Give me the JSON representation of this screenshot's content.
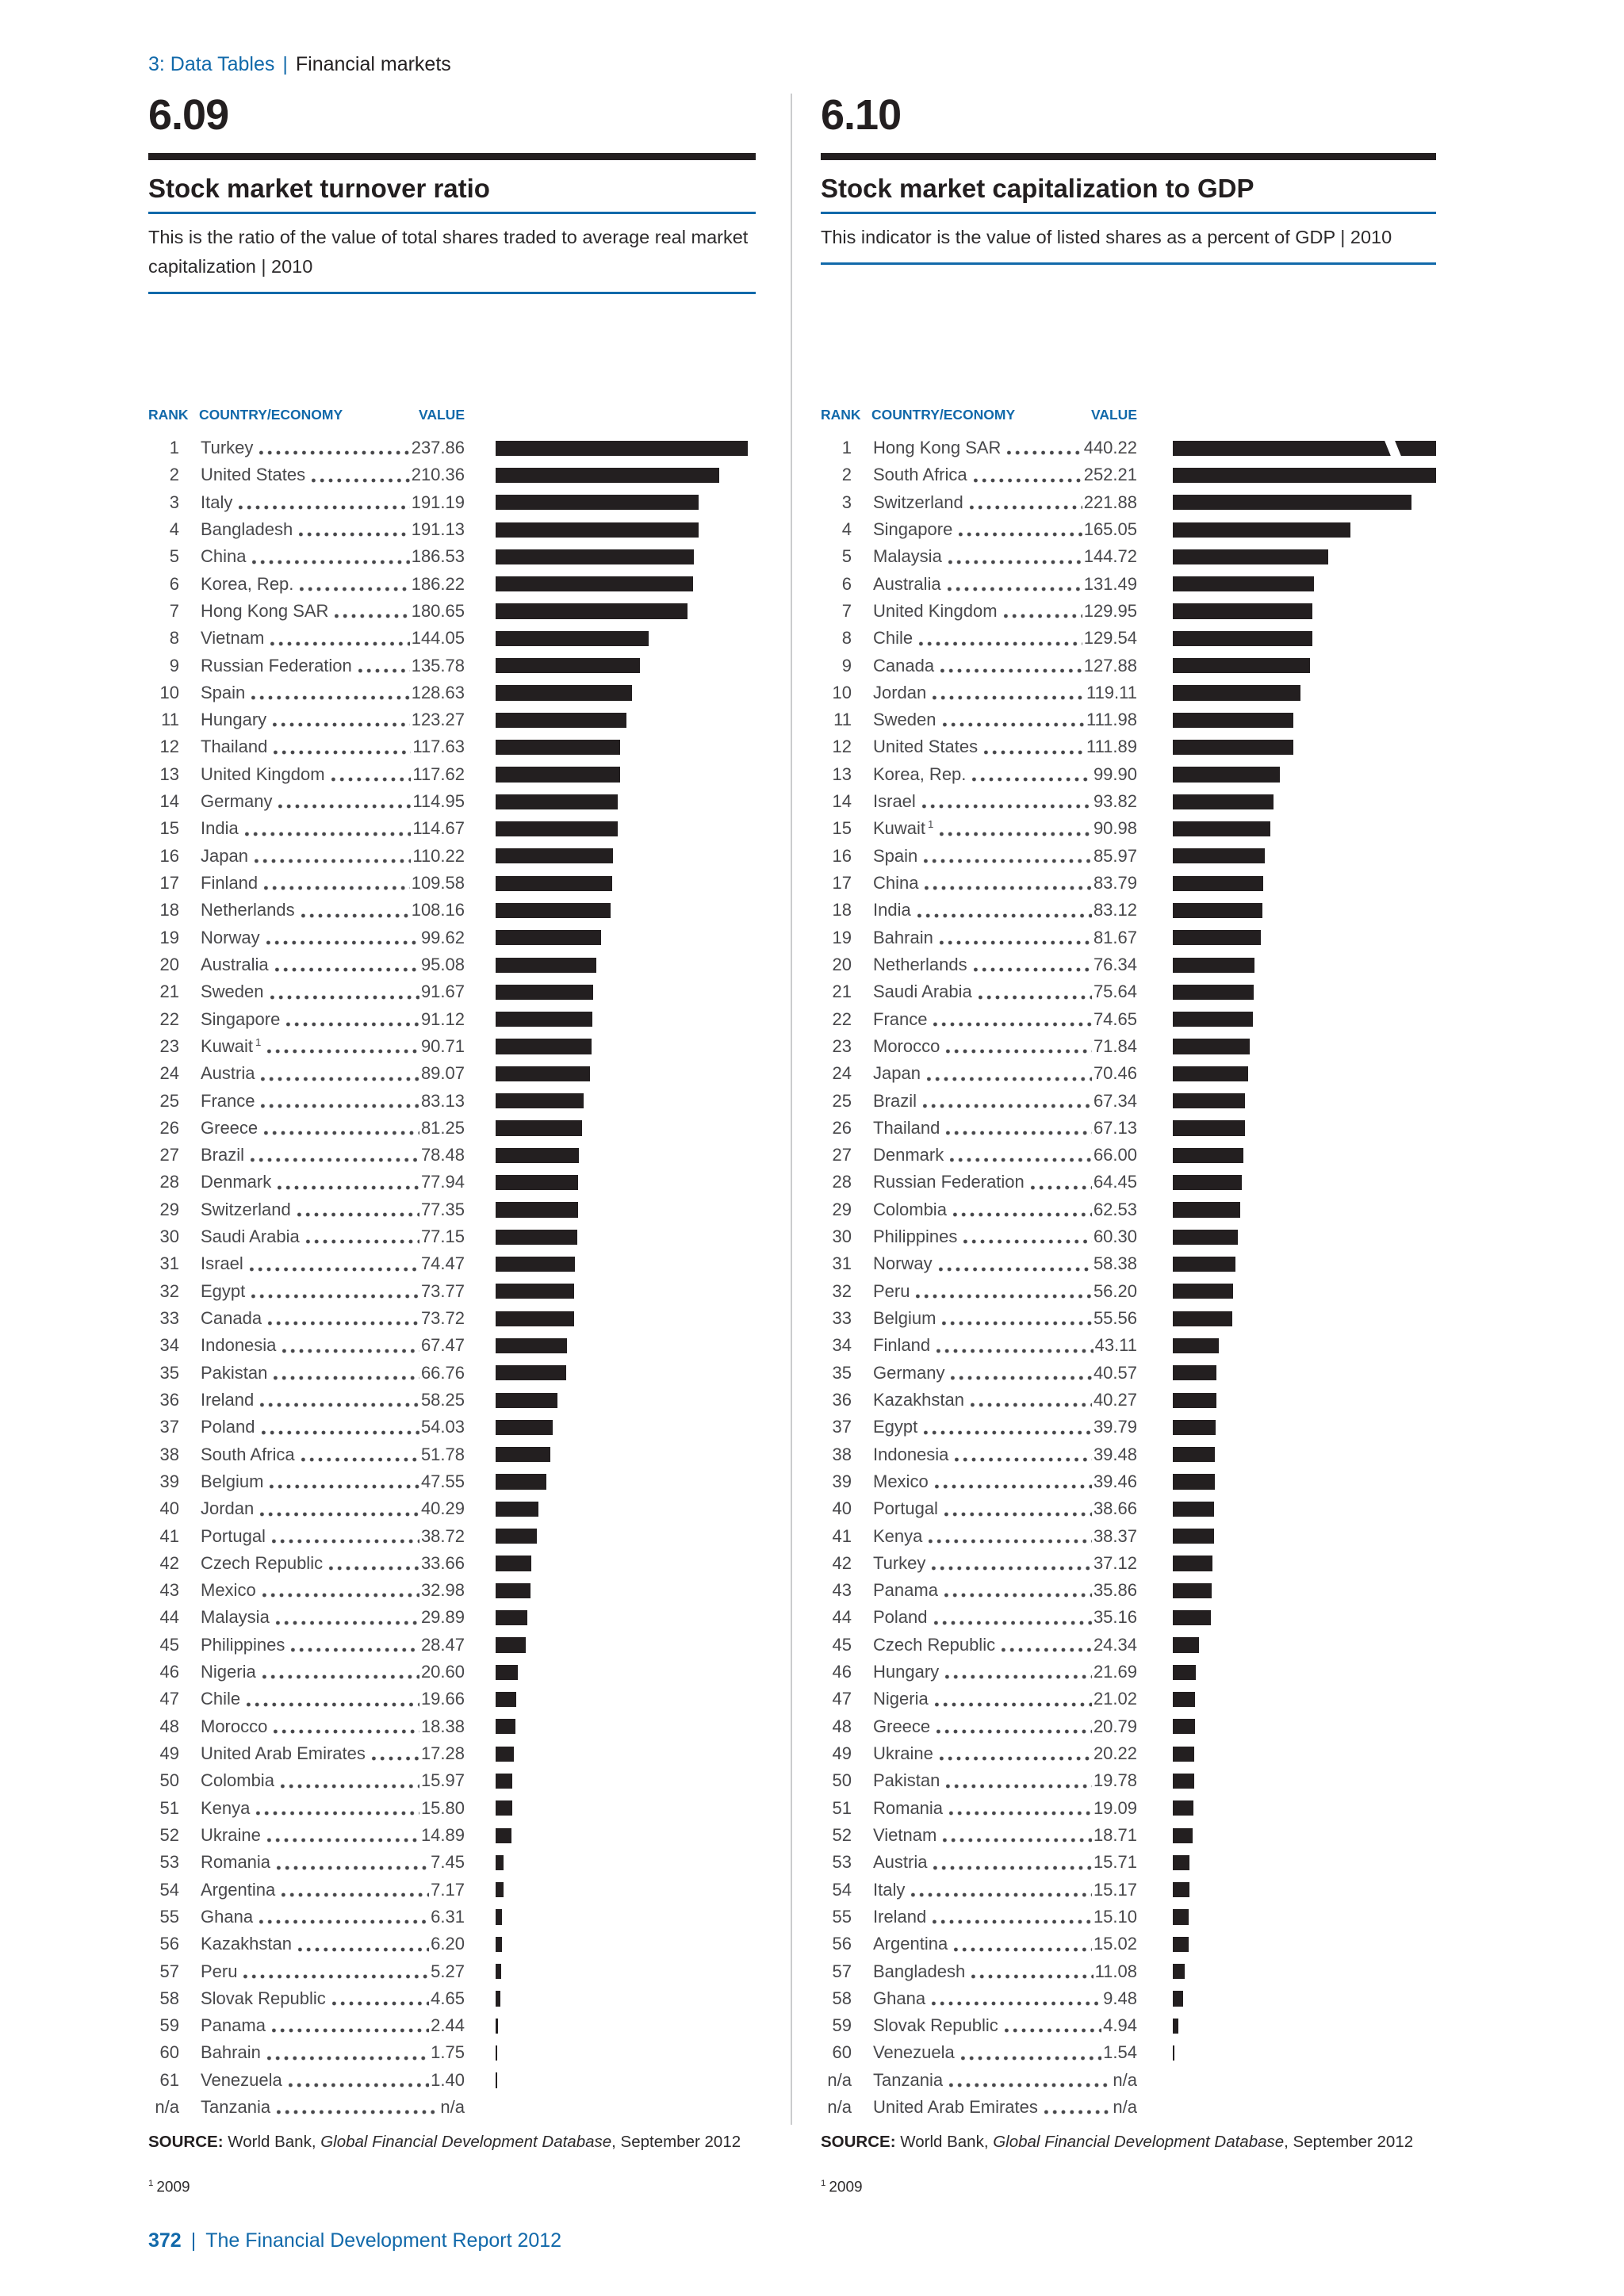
{
  "page": {
    "breadcrumb": {
      "section": "3: Data Tables",
      "separator": "|",
      "subsection": "Financial markets"
    },
    "footer": {
      "page_number": "372",
      "separator": "|",
      "title": "The Financial Development Report 2012"
    }
  },
  "colors": {
    "accent_blue": "#1169aa",
    "bar_black": "#231f20",
    "panel_gray": "#e4e5e6",
    "row_text": "#48484b",
    "divider_gray": "#cbccce"
  },
  "tables": [
    {
      "number": "6.09",
      "title": "Stock market turnover ratio",
      "description": "This is the ratio of the value of total shares traded to average real market capitalization | 2010",
      "columns": {
        "rank": "RANK",
        "country": "COUNTRY/ECONOMY",
        "value": "VALUE"
      },
      "bar_axis_max": 245,
      "source": {
        "label": "SOURCE:",
        "pre": " World Bank, ",
        "italic": "Global Financial Development Database",
        "post": ", September 2012"
      },
      "footnote": {
        "sup": "1",
        "text": "2009"
      },
      "rows": [
        {
          "rank": "1",
          "country": "Turkey",
          "value": "237.86"
        },
        {
          "rank": "2",
          "country": "United States",
          "value": "210.36"
        },
        {
          "rank": "3",
          "country": "Italy",
          "value": "191.19"
        },
        {
          "rank": "4",
          "country": "Bangladesh",
          "value": "191.13"
        },
        {
          "rank": "5",
          "country": "China",
          "value": "186.53"
        },
        {
          "rank": "6",
          "country": "Korea, Rep.",
          "value": "186.22"
        },
        {
          "rank": "7",
          "country": "Hong Kong SAR",
          "value": "180.65"
        },
        {
          "rank": "8",
          "country": "Vietnam",
          "value": "144.05"
        },
        {
          "rank": "9",
          "country": "Russian Federation",
          "value": "135.78"
        },
        {
          "rank": "10",
          "country": "Spain",
          "value": "128.63"
        },
        {
          "rank": "11",
          "country": "Hungary",
          "value": "123.27"
        },
        {
          "rank": "12",
          "country": "Thailand",
          "value": "117.63"
        },
        {
          "rank": "13",
          "country": "United Kingdom",
          "value": "117.62"
        },
        {
          "rank": "14",
          "country": "Germany",
          "value": "114.95"
        },
        {
          "rank": "15",
          "country": "India",
          "value": "114.67"
        },
        {
          "rank": "16",
          "country": "Japan",
          "value": "110.22"
        },
        {
          "rank": "17",
          "country": "Finland",
          "value": "109.58"
        },
        {
          "rank": "18",
          "country": "Netherlands",
          "value": "108.16"
        },
        {
          "rank": "19",
          "country": "Norway",
          "value": "99.62"
        },
        {
          "rank": "20",
          "country": "Australia",
          "value": "95.08"
        },
        {
          "rank": "21",
          "country": "Sweden",
          "value": "91.67"
        },
        {
          "rank": "22",
          "country": "Singapore",
          "value": "91.12"
        },
        {
          "rank": "23",
          "country": "Kuwait",
          "sup": "1",
          "value": "90.71"
        },
        {
          "rank": "24",
          "country": "Austria",
          "value": "89.07"
        },
        {
          "rank": "25",
          "country": "France",
          "value": "83.13"
        },
        {
          "rank": "26",
          "country": "Greece",
          "value": "81.25"
        },
        {
          "rank": "27",
          "country": "Brazil",
          "value": "78.48"
        },
        {
          "rank": "28",
          "country": "Denmark",
          "value": "77.94"
        },
        {
          "rank": "29",
          "country": "Switzerland",
          "value": "77.35"
        },
        {
          "rank": "30",
          "country": "Saudi Arabia",
          "value": "77.15"
        },
        {
          "rank": "31",
          "country": "Israel",
          "value": "74.47"
        },
        {
          "rank": "32",
          "country": "Egypt",
          "value": "73.77"
        },
        {
          "rank": "33",
          "country": "Canada",
          "value": "73.72"
        },
        {
          "rank": "34",
          "country": "Indonesia",
          "value": "67.47"
        },
        {
          "rank": "35",
          "country": "Pakistan",
          "value": "66.76"
        },
        {
          "rank": "36",
          "country": "Ireland",
          "value": "58.25"
        },
        {
          "rank": "37",
          "country": "Poland",
          "value": "54.03"
        },
        {
          "rank": "38",
          "country": "South Africa",
          "value": "51.78"
        },
        {
          "rank": "39",
          "country": "Belgium",
          "value": "47.55"
        },
        {
          "rank": "40",
          "country": "Jordan",
          "value": "40.29"
        },
        {
          "rank": "41",
          "country": "Portugal",
          "value": "38.72"
        },
        {
          "rank": "42",
          "country": "Czech Republic",
          "value": "33.66"
        },
        {
          "rank": "43",
          "country": "Mexico",
          "value": "32.98"
        },
        {
          "rank": "44",
          "country": "Malaysia",
          "value": "29.89"
        },
        {
          "rank": "45",
          "country": "Philippines",
          "value": "28.47"
        },
        {
          "rank": "46",
          "country": "Nigeria",
          "value": "20.60"
        },
        {
          "rank": "47",
          "country": "Chile",
          "value": "19.66"
        },
        {
          "rank": "48",
          "country": "Morocco",
          "value": "18.38"
        },
        {
          "rank": "49",
          "country": "United Arab Emirates",
          "value": "17.28"
        },
        {
          "rank": "50",
          "country": "Colombia",
          "value": "15.97"
        },
        {
          "rank": "51",
          "country": "Kenya",
          "value": "15.80"
        },
        {
          "rank": "52",
          "country": "Ukraine",
          "value": "14.89"
        },
        {
          "rank": "53",
          "country": "Romania",
          "value": "7.45"
        },
        {
          "rank": "54",
          "country": "Argentina",
          "value": "7.17"
        },
        {
          "rank": "55",
          "country": "Ghana",
          "value": "6.31"
        },
        {
          "rank": "56",
          "country": "Kazakhstan",
          "value": "6.20"
        },
        {
          "rank": "57",
          "country": "Peru",
          "value": "5.27"
        },
        {
          "rank": "58",
          "country": "Slovak Republic",
          "value": "4.65"
        },
        {
          "rank": "59",
          "country": "Panama",
          "value": "2.44"
        },
        {
          "rank": "60",
          "country": "Bahrain",
          "value": "1.75"
        },
        {
          "rank": "61",
          "country": "Venezuela",
          "value": "1.40"
        },
        {
          "rank": "n/a",
          "country": "Tanzania",
          "value": "n/a"
        }
      ]
    },
    {
      "number": "6.10",
      "title": "Stock market capitalization to GDP",
      "description": "This indicator is the value of listed shares as a percent of GDP | 2010",
      "columns": {
        "rank": "RANK",
        "country": "COUNTRY/ECONOMY",
        "value": "VALUE"
      },
      "bar_axis_max": 245,
      "source": {
        "label": "SOURCE:",
        "pre": " World Bank, ",
        "italic": "Global Financial Development Database",
        "post": ", September 2012"
      },
      "footnote": {
        "sup": "1",
        "text": "2009"
      },
      "rows": [
        {
          "rank": "1",
          "country": "Hong Kong SAR",
          "value": "440.22",
          "truncated": true
        },
        {
          "rank": "2",
          "country": "South Africa",
          "value": "252.21"
        },
        {
          "rank": "3",
          "country": "Switzerland",
          "value": "221.88"
        },
        {
          "rank": "4",
          "country": "Singapore",
          "value": "165.05"
        },
        {
          "rank": "5",
          "country": "Malaysia",
          "value": "144.72"
        },
        {
          "rank": "6",
          "country": "Australia",
          "value": "131.49"
        },
        {
          "rank": "7",
          "country": "United Kingdom",
          "value": "129.95"
        },
        {
          "rank": "8",
          "country": "Chile",
          "value": "129.54"
        },
        {
          "rank": "9",
          "country": "Canada",
          "value": "127.88"
        },
        {
          "rank": "10",
          "country": "Jordan",
          "value": "119.11"
        },
        {
          "rank": "11",
          "country": "Sweden",
          "value": "111.98"
        },
        {
          "rank": "12",
          "country": "United States",
          "value": "111.89"
        },
        {
          "rank": "13",
          "country": "Korea, Rep.",
          "value": "99.90"
        },
        {
          "rank": "14",
          "country": "Israel",
          "value": "93.82"
        },
        {
          "rank": "15",
          "country": "Kuwait",
          "sup": "1",
          "value": "90.98"
        },
        {
          "rank": "16",
          "country": "Spain",
          "value": "85.97"
        },
        {
          "rank": "17",
          "country": "China",
          "value": "83.79"
        },
        {
          "rank": "18",
          "country": "India",
          "value": "83.12"
        },
        {
          "rank": "19",
          "country": "Bahrain",
          "value": "81.67"
        },
        {
          "rank": "20",
          "country": "Netherlands",
          "value": "76.34"
        },
        {
          "rank": "21",
          "country": "Saudi Arabia",
          "value": "75.64"
        },
        {
          "rank": "22",
          "country": "France",
          "value": "74.65"
        },
        {
          "rank": "23",
          "country": "Morocco",
          "value": "71.84"
        },
        {
          "rank": "24",
          "country": "Japan",
          "value": "70.46"
        },
        {
          "rank": "25",
          "country": "Brazil",
          "value": "67.34"
        },
        {
          "rank": "26",
          "country": "Thailand",
          "value": "67.13"
        },
        {
          "rank": "27",
          "country": "Denmark",
          "value": "66.00"
        },
        {
          "rank": "28",
          "country": "Russian Federation",
          "value": "64.45"
        },
        {
          "rank": "29",
          "country": "Colombia",
          "value": "62.53"
        },
        {
          "rank": "30",
          "country": "Philippines",
          "value": "60.30"
        },
        {
          "rank": "31",
          "country": "Norway",
          "value": "58.38"
        },
        {
          "rank": "32",
          "country": "Peru",
          "value": "56.20"
        },
        {
          "rank": "33",
          "country": "Belgium",
          "value": "55.56"
        },
        {
          "rank": "34",
          "country": "Finland",
          "value": "43.11"
        },
        {
          "rank": "35",
          "country": "Germany",
          "value": "40.57"
        },
        {
          "rank": "36",
          "country": "Kazakhstan",
          "value": "40.27"
        },
        {
          "rank": "37",
          "country": "Egypt",
          "value": "39.79"
        },
        {
          "rank": "38",
          "country": "Indonesia",
          "value": "39.48"
        },
        {
          "rank": "39",
          "country": "Mexico",
          "value": "39.46"
        },
        {
          "rank": "40",
          "country": "Portugal",
          "value": "38.66"
        },
        {
          "rank": "41",
          "country": "Kenya",
          "value": "38.37"
        },
        {
          "rank": "42",
          "country": "Turkey",
          "value": "37.12"
        },
        {
          "rank": "43",
          "country": "Panama",
          "value": "35.86"
        },
        {
          "rank": "44",
          "country": "Poland",
          "value": "35.16"
        },
        {
          "rank": "45",
          "country": "Czech Republic",
          "value": "24.34"
        },
        {
          "rank": "46",
          "country": "Hungary",
          "value": "21.69"
        },
        {
          "rank": "47",
          "country": "Nigeria",
          "value": "21.02"
        },
        {
          "rank": "48",
          "country": "Greece",
          "value": "20.79"
        },
        {
          "rank": "49",
          "country": "Ukraine",
          "value": "20.22"
        },
        {
          "rank": "50",
          "country": "Pakistan",
          "value": "19.78"
        },
        {
          "rank": "51",
          "country": "Romania",
          "value": "19.09"
        },
        {
          "rank": "52",
          "country": "Vietnam",
          "value": "18.71"
        },
        {
          "rank": "53",
          "country": "Austria",
          "value": "15.71"
        },
        {
          "rank": "54",
          "country": "Italy",
          "value": "15.17"
        },
        {
          "rank": "55",
          "country": "Ireland",
          "value": "15.10"
        },
        {
          "rank": "56",
          "country": "Argentina",
          "value": "15.02"
        },
        {
          "rank": "57",
          "country": "Bangladesh",
          "value": "11.08"
        },
        {
          "rank": "58",
          "country": "Ghana",
          "value": "9.48"
        },
        {
          "rank": "59",
          "country": "Slovak Republic",
          "value": "4.94"
        },
        {
          "rank": "60",
          "country": "Venezuela",
          "value": "1.54"
        },
        {
          "rank": "n/a",
          "country": "Tanzania",
          "value": "n/a"
        },
        {
          "rank": "n/a",
          "country": "United Arab Emirates",
          "value": "n/a"
        }
      ]
    }
  ],
  "chart_data": [
    {
      "type": "bar",
      "orientation": "horizontal",
      "title": "6.09 Stock market turnover ratio (value of shares traded / average real market capitalization, 2010)",
      "categories": [
        "Turkey",
        "United States",
        "Italy",
        "Bangladesh",
        "China",
        "Korea, Rep.",
        "Hong Kong SAR",
        "Vietnam",
        "Russian Federation",
        "Spain",
        "Hungary",
        "Thailand",
        "United Kingdom",
        "Germany",
        "India",
        "Japan",
        "Finland",
        "Netherlands",
        "Norway",
        "Australia",
        "Sweden",
        "Singapore",
        "Kuwait",
        "Austria",
        "France",
        "Greece",
        "Brazil",
        "Denmark",
        "Switzerland",
        "Saudi Arabia",
        "Israel",
        "Egypt",
        "Canada",
        "Indonesia",
        "Pakistan",
        "Ireland",
        "Poland",
        "South Africa",
        "Belgium",
        "Jordan",
        "Portugal",
        "Czech Republic",
        "Mexico",
        "Malaysia",
        "Philippines",
        "Nigeria",
        "Chile",
        "Morocco",
        "United Arab Emirates",
        "Colombia",
        "Kenya",
        "Ukraine",
        "Romania",
        "Argentina",
        "Ghana",
        "Kazakhstan",
        "Peru",
        "Slovak Republic",
        "Panama",
        "Bahrain",
        "Venezuela",
        "Tanzania"
      ],
      "values": [
        237.86,
        210.36,
        191.19,
        191.13,
        186.53,
        186.22,
        180.65,
        144.05,
        135.78,
        128.63,
        123.27,
        117.63,
        117.62,
        114.95,
        114.67,
        110.22,
        109.58,
        108.16,
        99.62,
        95.08,
        91.67,
        91.12,
        90.71,
        89.07,
        83.13,
        81.25,
        78.48,
        77.94,
        77.35,
        77.15,
        74.47,
        73.77,
        73.72,
        67.47,
        66.76,
        58.25,
        54.03,
        51.78,
        47.55,
        40.29,
        38.72,
        33.66,
        32.98,
        29.89,
        28.47,
        20.6,
        19.66,
        18.38,
        17.28,
        15.97,
        15.8,
        14.89,
        7.45,
        7.17,
        6.31,
        6.2,
        5.27,
        4.65,
        2.44,
        1.75,
        1.4,
        null
      ],
      "xlim": [
        0,
        245
      ],
      "grid": false,
      "legend": "none"
    },
    {
      "type": "bar",
      "orientation": "horizontal",
      "title": "6.10 Stock market capitalization to GDP (value of listed shares as a percent of GDP, 2010)",
      "categories": [
        "Hong Kong SAR",
        "South Africa",
        "Switzerland",
        "Singapore",
        "Malaysia",
        "Australia",
        "United Kingdom",
        "Chile",
        "Canada",
        "Jordan",
        "Sweden",
        "United States",
        "Korea, Rep.",
        "Israel",
        "Kuwait",
        "Spain",
        "China",
        "India",
        "Bahrain",
        "Netherlands",
        "Saudi Arabia",
        "France",
        "Morocco",
        "Japan",
        "Brazil",
        "Thailand",
        "Denmark",
        "Russian Federation",
        "Colombia",
        "Philippines",
        "Norway",
        "Peru",
        "Belgium",
        "Finland",
        "Germany",
        "Kazakhstan",
        "Egypt",
        "Indonesia",
        "Mexico",
        "Portugal",
        "Kenya",
        "Turkey",
        "Panama",
        "Poland",
        "Czech Republic",
        "Hungary",
        "Nigeria",
        "Greece",
        "Ukraine",
        "Pakistan",
        "Romania",
        "Vietnam",
        "Austria",
        "Italy",
        "Ireland",
        "Argentina",
        "Bangladesh",
        "Ghana",
        "Slovak Republic",
        "Venezuela",
        "Tanzania",
        "United Arab Emirates"
      ],
      "values": [
        440.22,
        252.21,
        221.88,
        165.05,
        144.72,
        131.49,
        129.95,
        129.54,
        127.88,
        119.11,
        111.98,
        111.89,
        99.9,
        93.82,
        90.98,
        85.97,
        83.79,
        83.12,
        81.67,
        76.34,
        75.64,
        74.65,
        71.84,
        70.46,
        67.34,
        67.13,
        66.0,
        64.45,
        62.53,
        60.3,
        58.38,
        56.2,
        55.56,
        43.11,
        40.57,
        40.27,
        39.79,
        39.48,
        39.46,
        38.66,
        38.37,
        37.12,
        35.86,
        35.16,
        24.34,
        21.69,
        21.02,
        20.79,
        20.22,
        19.78,
        19.09,
        18.71,
        15.71,
        15.17,
        15.1,
        15.02,
        11.08,
        9.48,
        4.94,
        1.54,
        null,
        null
      ],
      "xlim": [
        0,
        245
      ],
      "bars_truncated_at_axis_max": [
        "Hong Kong SAR"
      ],
      "grid": false,
      "legend": "none"
    }
  ]
}
